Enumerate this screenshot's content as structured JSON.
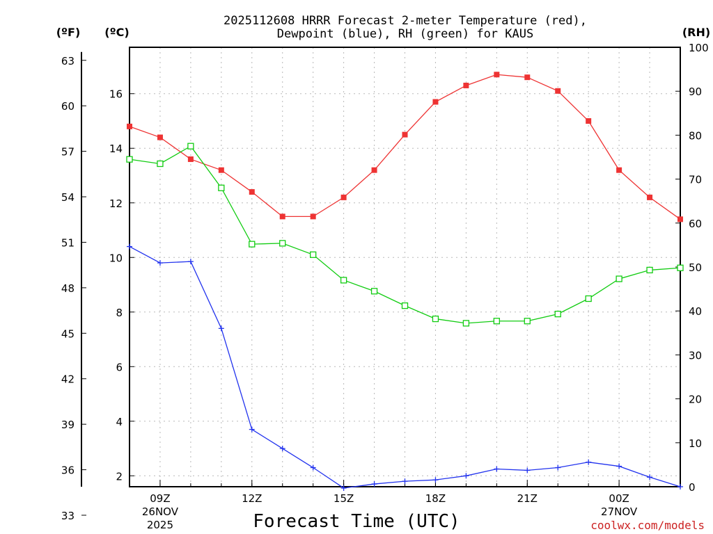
{
  "chart_data": {
    "type": "line",
    "title": [
      "2025112608 HRRR Forecast 2-meter Temperature (red),",
      "Dewpoint (blue), RH (green) for KAUS"
    ],
    "xlabel": "Forecast Time (UTC)",
    "credit": "coolwx.com/models",
    "unit_labels": {
      "fahrenheit": "(ºF)",
      "celsius": "(ºC)",
      "rh": "(RH)"
    },
    "x": [
      8,
      9,
      10,
      11,
      12,
      13,
      14,
      15,
      16,
      17,
      18,
      19,
      20,
      21,
      22,
      23,
      24,
      25,
      26
    ],
    "xlim": [
      8,
      26
    ],
    "x_ticks": [
      {
        "x": 9,
        "lines": [
          "09Z",
          "26NOV",
          "2025"
        ]
      },
      {
        "x": 12,
        "lines": [
          "12Z"
        ]
      },
      {
        "x": 15,
        "lines": [
          "15Z"
        ]
      },
      {
        "x": 18,
        "lines": [
          "18Z"
        ]
      },
      {
        "x": 21,
        "lines": [
          "21Z"
        ]
      },
      {
        "x": 24,
        "lines": [
          "00Z",
          "27NOV"
        ]
      }
    ],
    "axes": {
      "celsius": {
        "ylim": [
          1.6,
          17.7
        ],
        "ticks": [
          "2",
          "4",
          "6",
          "8",
          "10",
          "12",
          "14",
          "16"
        ]
      },
      "fahrenheit": {
        "ticks": [
          "33",
          "36",
          "39",
          "42",
          "45",
          "48",
          "51",
          "54",
          "57",
          "60",
          "63"
        ]
      },
      "rh": {
        "ylim": [
          0,
          100
        ],
        "ticks": [
          "0",
          "10",
          "20",
          "30",
          "40",
          "50",
          "60",
          "70",
          "80",
          "90",
          "100"
        ]
      }
    },
    "series": [
      {
        "name": "Temperature",
        "axis": "celsius",
        "color": "#ee3333",
        "marker": "filled-square",
        "values": [
          14.8,
          14.4,
          13.6,
          13.2,
          12.4,
          11.5,
          11.5,
          12.2,
          13.2,
          14.5,
          15.7,
          16.3,
          16.7,
          16.6,
          16.1,
          15.0,
          13.2,
          12.2,
          11.4
        ]
      },
      {
        "name": "Dewpoint",
        "axis": "celsius",
        "color": "#2233ee",
        "marker": "plus",
        "values": [
          10.4,
          9.8,
          9.85,
          7.4,
          3.7,
          3.0,
          2.3,
          1.55,
          1.7,
          1.8,
          1.85,
          2.0,
          2.25,
          2.2,
          2.3,
          2.5,
          2.35,
          1.95,
          1.6
        ]
      },
      {
        "name": "RH",
        "axis": "rh",
        "color": "#11cc11",
        "marker": "open-square",
        "values": [
          74.5,
          73.5,
          77.5,
          68.0,
          55.2,
          55.4,
          52.8,
          47.0,
          44.5,
          41.2,
          38.2,
          37.2,
          37.7,
          37.7,
          39.3,
          42.8,
          47.3,
          49.3,
          49.8
        ]
      }
    ]
  }
}
